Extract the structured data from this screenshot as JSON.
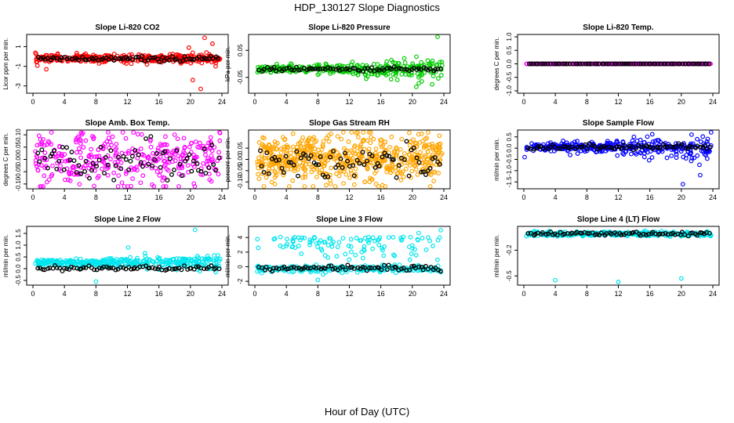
{
  "title": "HDP_130127  Slope Diagnostics",
  "xlabel": "Hour of Day (UTC)",
  "colors": {
    "black": "#000000",
    "red": "#ff0000",
    "green": "#00cc00",
    "magenta": "#ff00ff",
    "orange": "#ffa500",
    "blue": "#0000ff",
    "cyan": "#00e5ee"
  },
  "x_ticks": [
    "0",
    "4",
    "8",
    "12",
    "16",
    "20",
    "24"
  ],
  "chart_data": [
    {
      "type": "scatter",
      "title": "Slope Li-820 CO2",
      "ylabel": "Licor ppm per min.",
      "xlim": [
        0,
        24
      ],
      "ylim": [
        -3.5,
        2
      ],
      "y_ticks": [
        {
          "v": 1,
          "l": "1"
        },
        {
          "v": -1,
          "l": "-1"
        },
        {
          "v": -3,
          "l": "-3"
        }
      ],
      "colored": {
        "color": "red",
        "center": -0.2,
        "spread": 0.35,
        "outliers": [
          [
            21.8,
            1.9
          ],
          [
            22.8,
            1.3
          ],
          [
            21.3,
            -3.3
          ],
          [
            20.3,
            -2.4
          ],
          [
            1.7,
            -1.3
          ],
          [
            23.2,
            -1.0
          ],
          [
            19.8,
            0.9
          ]
        ]
      },
      "black": {
        "center": -0.25,
        "spread": 0.2
      }
    },
    {
      "type": "scatter",
      "title": "Slope Li-820 Pressure",
      "ylabel": "kPa per min.",
      "xlim": [
        0,
        24
      ],
      "ylim": [
        -0.1,
        0.1
      ],
      "y_ticks": [
        {
          "v": 0.05,
          "l": "0.05"
        },
        {
          "v": -0.05,
          "l": "-0.05"
        }
      ],
      "colored": {
        "color": "green",
        "center": -0.02,
        "spread": 0.01,
        "grow": 0.03,
        "outliers": [
          [
            23.2,
            0.1
          ],
          [
            20.5,
            -0.085
          ],
          [
            21.2,
            -0.065
          ],
          [
            8,
            -0.04
          ]
        ]
      },
      "black": {
        "center": -0.02,
        "spread": 0.006
      }
    },
    {
      "type": "scatter",
      "title": "Slope Li-820 Temp.",
      "ylabel": "degrees C per min.",
      "xlim": [
        0,
        24
      ],
      "ylim": [
        -1,
        1
      ],
      "y_ticks": [
        {
          "v": 1,
          "l": "1.0"
        },
        {
          "v": 0.5,
          "l": "0.5"
        },
        {
          "v": 0,
          "l": "0.0"
        },
        {
          "v": -0.5,
          "l": "-0.5"
        },
        {
          "v": -1,
          "l": "-1.0"
        }
      ],
      "colored": {
        "color": "magenta",
        "center": 0,
        "spread": 0.0
      },
      "black": {
        "center": 0,
        "spread": 0.0
      }
    },
    {
      "type": "scatter",
      "title": "Slope Amb. Box Temp.",
      "ylabel": "degrees C per min.",
      "xlim": [
        0,
        24
      ],
      "ylim": [
        -0.11,
        0.11
      ],
      "y_ticks": [
        {
          "v": 0.1,
          "l": "0.10"
        },
        {
          "v": 0.05,
          "l": "0.05"
        },
        {
          "v": 0,
          "l": "0.00"
        },
        {
          "v": -0.05,
          "l": "-0.05"
        },
        {
          "v": -0.1,
          "l": "-0.10"
        }
      ],
      "colored": {
        "color": "magenta",
        "center": 0,
        "spread": 0.09
      },
      "black": {
        "center": 0,
        "spread": 0.06
      }
    },
    {
      "type": "scatter",
      "title": "Slope Gas Stream RH",
      "ylabel": "percent per min.",
      "xlim": [
        0,
        24
      ],
      "ylim": [
        -0.12,
        0.12
      ],
      "y_ticks": [
        {
          "v": 0.05,
          "l": "0.05"
        },
        {
          "v": 0,
          "l": "0.00"
        },
        {
          "v": -0.05,
          "l": "-0.05"
        },
        {
          "v": -0.1,
          "l": "-0.10"
        }
      ],
      "colored": {
        "color": "orange",
        "center": 0,
        "spread": 0.09,
        "dense": true
      },
      "black": {
        "center": -0.01,
        "spread": 0.06
      }
    },
    {
      "type": "scatter",
      "title": "Slope Sample Flow",
      "ylabel": "ml/min per min.",
      "xlim": [
        0,
        24
      ],
      "ylim": [
        -1.7,
        0.7
      ],
      "y_ticks": [
        {
          "v": 0.5,
          "l": "0.5"
        },
        {
          "v": 0,
          "l": "0.0"
        },
        {
          "v": -0.5,
          "l": "-0.5"
        },
        {
          "v": -1,
          "l": "-1.0"
        },
        {
          "v": -1.5,
          "l": "-1.5"
        }
      ],
      "colored": {
        "color": "blue",
        "center": 0.05,
        "spread": 0.15,
        "grow": 0.4,
        "outliers": [
          [
            20.2,
            -1.6
          ],
          [
            22.4,
            -1.2
          ],
          [
            20.6,
            -0.45
          ],
          [
            0.1,
            -0.4
          ],
          [
            21.3,
            0.6
          ]
        ]
      },
      "black": {
        "center": 0.05,
        "spread": 0.1
      }
    },
    {
      "type": "scatter",
      "title": "Slope Line 2 Flow",
      "ylabel": "ml/min per min.",
      "xlim": [
        0,
        24
      ],
      "ylim": [
        -0.6,
        1.7
      ],
      "y_ticks": [
        {
          "v": 1.5,
          "l": "1.5"
        },
        {
          "v": 1,
          "l": "1.0"
        },
        {
          "v": 0.5,
          "l": "0.5"
        },
        {
          "v": 0,
          "l": "0.0"
        },
        {
          "v": -0.5,
          "l": "-0.5"
        }
      ],
      "colored": {
        "color": "cyan",
        "center": 0.25,
        "spread": 0.12,
        "grow": 0.2,
        "outliers": [
          [
            8,
            -0.55
          ],
          [
            20.6,
            1.65
          ],
          [
            12.1,
            0.9
          ]
        ]
      },
      "black": {
        "center": 0.02,
        "spread": 0.08
      }
    },
    {
      "type": "scatter",
      "title": "Slope Line 3 Flow",
      "ylabel": "ml/min per min.",
      "xlim": [
        0,
        24
      ],
      "ylim": [
        -2.2,
        5.2
      ],
      "y_ticks": [
        {
          "v": 4,
          "l": "4"
        },
        {
          "v": 2,
          "l": "2"
        },
        {
          "v": 0,
          "l": "0"
        },
        {
          "v": -2,
          "l": "-2"
        }
      ],
      "colored": {
        "color": "cyan",
        "center": -0.3,
        "spread": 0.4,
        "upper": 4.1,
        "outliers": [
          [
            23.6,
            5.0
          ],
          [
            20.8,
            4.6
          ],
          [
            8,
            -1.8
          ],
          [
            21.6,
            -0.4
          ]
        ]
      },
      "black": {
        "center": -0.2,
        "spread": 0.3
      }
    },
    {
      "type": "scatter",
      "title": "Slope Line 4 (LT) Flow",
      "ylabel": "ml/min per min.",
      "xlim": [
        0,
        24
      ],
      "ylim": [
        -0.58,
        0.05
      ],
      "y_ticks": [
        {
          "v": -0.2,
          "l": "-0.2"
        },
        {
          "v": -0.5,
          "l": "-0.5"
        }
      ],
      "colored": {
        "color": "cyan",
        "center": -0.01,
        "spread": 0.02,
        "outliers": [
          [
            4,
            -0.55
          ],
          [
            12,
            -0.57
          ],
          [
            20,
            -0.53
          ]
        ]
      },
      "black": {
        "center": -0.01,
        "spread": 0.015
      }
    }
  ]
}
